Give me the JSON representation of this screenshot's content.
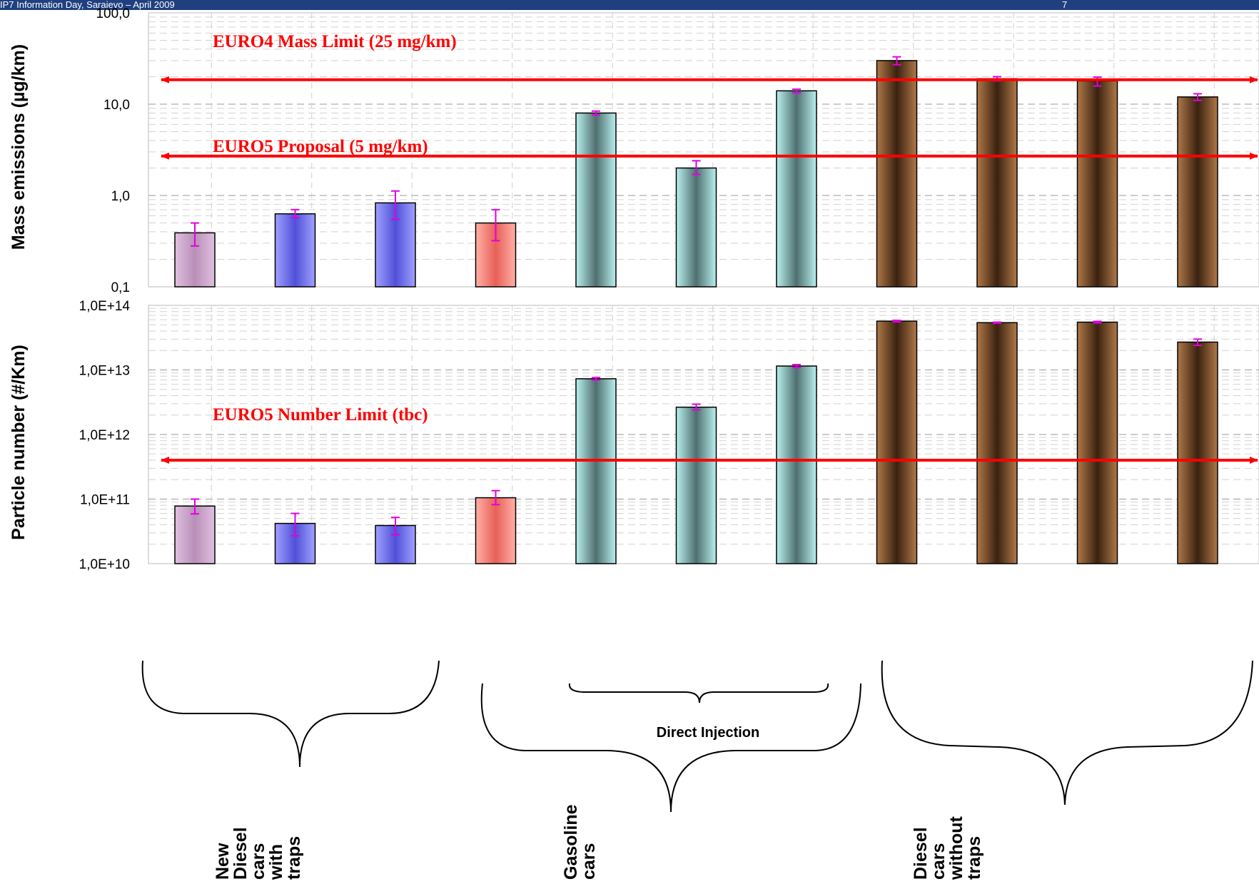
{
  "header": {
    "left_text": "IP7 Information Day, Sarajevo – April 2009",
    "page_number": "7"
  },
  "colors": {
    "header_bg": "#1f3f7f",
    "limit_line": "#ff0000",
    "error_bar": "#e000e0",
    "diesel_trap_first": "#c9a0c8",
    "diesel_trap": "#6b6be8",
    "red_car": "#f08078",
    "gasoline_di": "#8fcfcf",
    "diesel_no_trap": "#6b4425"
  },
  "chart_data": [
    {
      "type": "bar",
      "log_scale": true,
      "grid": true,
      "ylabel": "Mass emissions (µg/km)",
      "ylim": [
        0.1,
        100
      ],
      "yticks": [
        "0,1",
        "1,0",
        "10,0",
        "100,0"
      ],
      "series": [
        {
          "values": [
            0.39,
            0.63,
            0.83,
            0.5,
            8.0,
            2.0,
            14.0,
            30.0,
            19.0,
            18.0,
            12.0
          ],
          "error_low": [
            0.28,
            0.57,
            0.55,
            0.32,
            7.6,
            1.7,
            13.3,
            27.0,
            18.0,
            15.8,
            11.0
          ],
          "error_high": [
            0.5,
            0.7,
            1.12,
            0.7,
            8.4,
            2.4,
            14.6,
            33.0,
            20.0,
            19.8,
            13.0
          ]
        }
      ],
      "limits": [
        {
          "label": "EURO4 Mass Limit (25 mg/km)",
          "value": 18.5
        },
        {
          "label": "EURO5 Proposal (5 mg/km)",
          "value": 2.7
        }
      ]
    },
    {
      "type": "bar",
      "log_scale": true,
      "grid": true,
      "ylabel": "Particle number  (#/Km)",
      "ylim": [
        10000000000.0,
        100000000000000.0
      ],
      "yticks": [
        "1,0E+10",
        "1,0E+11",
        "1,0E+12",
        "1,0E+13",
        "1,0E+14"
      ],
      "series": [
        {
          "values": [
            78000000000.0,
            42000000000.0,
            39000000000.0,
            105000000000.0,
            7300000000000.0,
            2650000000000.0,
            11500000000000.0,
            57000000000000.0,
            54000000000000.0,
            55000000000000.0,
            27000000000000.0
          ],
          "error_low": [
            59000000000.0,
            27000000000.0,
            28000000000.0,
            82000000000.0,
            7000000000000.0,
            2400000000000.0,
            10900000000000.0,
            55500000000000.0,
            53000000000000.0,
            53500000000000.0,
            24000000000000.0
          ],
          "error_high": [
            100000000000.0,
            60000000000.0,
            52000000000.0,
            135000000000.0,
            7600000000000.0,
            2950000000000.0,
            12100000000000.0,
            58500000000000.0,
            55000000000000.0,
            56500000000000.0,
            30000000000000.0
          ]
        }
      ],
      "limits": [
        {
          "label": "EURO5 Number Limit (tbc)",
          "value": 400000000000.0
        }
      ]
    }
  ],
  "groups": [
    {
      "label_lines": [
        "New",
        "Diesel",
        "cars",
        "with",
        "traps"
      ]
    },
    {
      "label_lines": [
        "Gasoline",
        "cars"
      ],
      "sub_label": "Direct Injection"
    },
    {
      "label_lines": [
        "Diesel",
        "cars",
        "without",
        "traps"
      ]
    }
  ]
}
